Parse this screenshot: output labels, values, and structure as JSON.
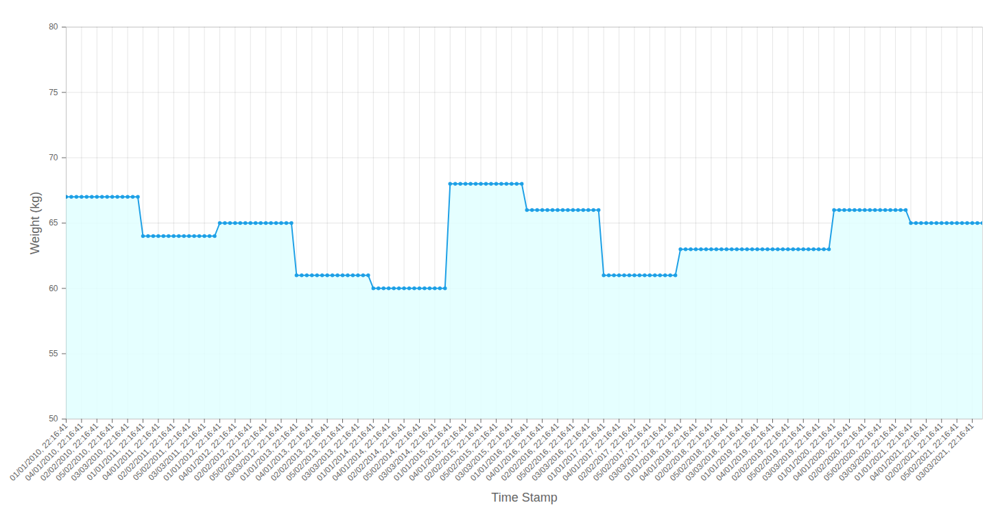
{
  "chart_data": {
    "type": "line",
    "x_label": "Time Stamp",
    "y_label": "Weight (kg)",
    "color": "#1ea0e6",
    "marker": "circle",
    "grid": true,
    "ylim": [
      50,
      80
    ],
    "yticks": [
      50,
      55,
      60,
      65,
      70,
      75,
      80
    ],
    "categories": [
      "01/01/2010, 22:16:41",
      null,
      null,
      "04/01/2010, 22:16:41",
      null,
      null,
      "02/02/2010, 22:16:41",
      null,
      null,
      "05/02/2010, 22:16:41",
      null,
      null,
      "03/03/2010, 22:16:41",
      null,
      null,
      "01/01/2011, 22:16:41",
      null,
      null,
      "04/01/2011, 22:16:41",
      null,
      null,
      "02/02/2011, 22:16:41",
      null,
      null,
      "05/02/2011, 22:16:41",
      null,
      null,
      "03/03/2011, 22:16:41",
      null,
      null,
      "01/01/2012, 22:16:41",
      null,
      null,
      "04/01/2012, 22:16:41",
      null,
      null,
      "02/02/2012, 22:16:41",
      null,
      null,
      "05/02/2012, 22:16:41",
      null,
      null,
      "03/03/2012, 22:16:41",
      null,
      null,
      "01/01/2013, 22:16:41",
      null,
      null,
      "04/01/2013, 22:16:41",
      null,
      null,
      "02/02/2013, 22:16:41",
      null,
      null,
      "05/02/2013, 22:16:41",
      null,
      null,
      "03/03/2013, 22:16:41",
      null,
      null,
      "01/01/2014, 22:16:41",
      null,
      null,
      "04/01/2014, 22:16:41",
      null,
      null,
      "02/02/2014, 22:16:41",
      null,
      null,
      "05/02/2014, 22:16:41",
      null,
      null,
      "03/03/2014, 22:16:41",
      null,
      null,
      "01/01/2015, 22:16:41",
      null,
      null,
      "04/01/2015, 22:16:41",
      null,
      null,
      "02/02/2015, 22:16:41",
      null,
      null,
      "05/02/2015, 22:16:41",
      null,
      null,
      "03/03/2015, 22:16:41",
      null,
      null,
      "01/01/2016, 22:16:41",
      null,
      null,
      "04/01/2016, 22:16:41",
      null,
      null,
      "02/02/2016, 22:16:41",
      null,
      null,
      "05/02/2016, 22:16:41",
      null,
      null,
      "03/03/2016, 22:16:41",
      null,
      null,
      "01/01/2017, 22:16:41",
      null,
      null,
      "04/01/2017, 22:16:41",
      null,
      null,
      "02/02/2017, 22:16:41",
      null,
      null,
      "05/02/2017, 22:16:41",
      null,
      null,
      "03/03/2017, 22:16:41",
      null,
      null,
      "01/01/2018, 22:16:41",
      null,
      null,
      "04/01/2018, 22:16:41",
      null,
      null,
      "02/02/2018, 22:16:41",
      null,
      null,
      "05/02/2018, 22:16:41",
      null,
      null,
      "03/03/2018, 22:16:41",
      null,
      null,
      "01/01/2019, 22:16:41",
      null,
      null,
      "04/01/2019, 22:16:41",
      null,
      null,
      "02/02/2019, 22:16:41",
      null,
      null,
      "05/02/2019, 22:16:41",
      null,
      null,
      "03/03/2019, 22:16:41",
      null,
      null,
      "01/01/2020, 22:16:41",
      null,
      null,
      "04/01/2020, 22:16:41",
      null,
      null,
      "02/02/2020, 22:16:41",
      null,
      null,
      "05/02/2020, 22:16:41",
      null,
      null,
      "03/03/2020, 22:16:41",
      null,
      null,
      "01/01/2021, 22:16:41",
      null,
      null,
      "04/01/2021, 22:16:41",
      null,
      null,
      "02/02/2021, 22:16:41",
      null,
      null,
      "05/02/2021, 22:16:41",
      null,
      null,
      "03/03/2021, 22:16:41",
      null,
      null
    ],
    "values": [
      67,
      67,
      67,
      67,
      67,
      67,
      67,
      67,
      67,
      67,
      67,
      67,
      67,
      67,
      67,
      64,
      64,
      64,
      64,
      64,
      64,
      64,
      64,
      64,
      64,
      64,
      64,
      64,
      64,
      64,
      65,
      65,
      65,
      65,
      65,
      65,
      65,
      65,
      65,
      65,
      65,
      65,
      65,
      65,
      65,
      61,
      61,
      61,
      61,
      61,
      61,
      61,
      61,
      61,
      61,
      61,
      61,
      61,
      61,
      61,
      60,
      60,
      60,
      60,
      60,
      60,
      60,
      60,
      60,
      60,
      60,
      60,
      60,
      60,
      60,
      68,
      68,
      68,
      68,
      68,
      68,
      68,
      68,
      68,
      68,
      68,
      68,
      68,
      68,
      68,
      66,
      66,
      66,
      66,
      66,
      66,
      66,
      66,
      66,
      66,
      66,
      66,
      66,
      66,
      66,
      61,
      61,
      61,
      61,
      61,
      61,
      61,
      61,
      61,
      61,
      61,
      61,
      61,
      61,
      61,
      63,
      63,
      63,
      63,
      63,
      63,
      63,
      63,
      63,
      63,
      63,
      63,
      63,
      63,
      63,
      63,
      63,
      63,
      63,
      63,
      63,
      63,
      63,
      63,
      63,
      63,
      63,
      63,
      63,
      63,
      66,
      66,
      66,
      66,
      66,
      66,
      66,
      66,
      66,
      66,
      66,
      66,
      66,
      66,
      66,
      65,
      65,
      65,
      65,
      65,
      65,
      65,
      65,
      65,
      65,
      65,
      65,
      65,
      65,
      65
    ]
  }
}
